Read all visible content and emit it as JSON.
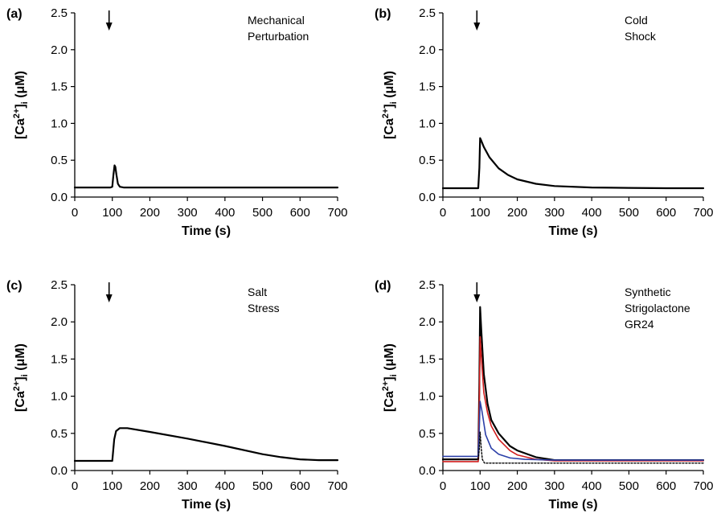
{
  "chart_data": [
    {
      "panel": "(a)",
      "type": "line",
      "xlabel": "Time (s)",
      "ylabel": "[Ca2+]i (μM)",
      "xlim": [
        0,
        700
      ],
      "ylim": [
        0,
        2.5
      ],
      "xticks": [
        "0",
        "100",
        "200",
        "300",
        "400",
        "500",
        "600",
        "700"
      ],
      "yticks": [
        "0.0",
        "0.5",
        "1.0",
        "1.5",
        "2.0",
        "2.5"
      ],
      "annotation": [
        "Mechanical",
        "Perturbation"
      ],
      "arrow_x": 100,
      "series": [
        {
          "color": "#000000",
          "style": "solid",
          "x": [
            0,
            95,
            100,
            103,
            106,
            108,
            111,
            115,
            120,
            130,
            700
          ],
          "y": [
            0.13,
            0.13,
            0.14,
            0.3,
            0.43,
            0.41,
            0.3,
            0.18,
            0.14,
            0.13,
            0.13
          ]
        }
      ]
    },
    {
      "panel": "(b)",
      "type": "line",
      "xlabel": "Time (s)",
      "ylabel": "[Ca2+]i (μM)",
      "xlim": [
        0,
        700
      ],
      "ylim": [
        0,
        2.5
      ],
      "xticks": [
        "0",
        "100",
        "200",
        "300",
        "400",
        "500",
        "600",
        "700"
      ],
      "yticks": [
        "0.0",
        "0.5",
        "1.0",
        "1.5",
        "2.0",
        "2.5"
      ],
      "annotation": [
        "Cold",
        "Shock"
      ],
      "arrow_x": 100,
      "series": [
        {
          "color": "#000000",
          "style": "solid",
          "x": [
            0,
            95,
            98,
            100,
            102,
            110,
            125,
            150,
            175,
            200,
            250,
            300,
            400,
            500,
            600,
            700
          ],
          "y": [
            0.12,
            0.12,
            0.4,
            0.8,
            0.78,
            0.68,
            0.54,
            0.39,
            0.3,
            0.24,
            0.18,
            0.15,
            0.13,
            0.125,
            0.12,
            0.12
          ]
        }
      ]
    },
    {
      "panel": "(c)",
      "type": "line",
      "xlabel": "Time (s)",
      "ylabel": "[Ca2+]i (μM)",
      "xlim": [
        0,
        700
      ],
      "ylim": [
        0,
        2.5
      ],
      "xticks": [
        "0",
        "100",
        "200",
        "300",
        "400",
        "500",
        "600",
        "700"
      ],
      "yticks": [
        "0.0",
        "0.5",
        "1.0",
        "1.5",
        "2.0",
        "2.5"
      ],
      "annotation": [
        "Salt",
        "Stress"
      ],
      "arrow_x": 100,
      "series": [
        {
          "color": "#000000",
          "style": "solid",
          "x": [
            0,
            100,
            105,
            110,
            120,
            140,
            200,
            300,
            400,
            500,
            550,
            600,
            650,
            700
          ],
          "y": [
            0.13,
            0.13,
            0.42,
            0.53,
            0.57,
            0.57,
            0.52,
            0.43,
            0.33,
            0.22,
            0.18,
            0.15,
            0.14,
            0.14
          ]
        }
      ]
    },
    {
      "panel": "(d)",
      "type": "line",
      "xlabel": "Time (s)",
      "ylabel": "[Ca2+]i (μM)",
      "xlim": [
        0,
        700
      ],
      "ylim": [
        0,
        2.5
      ],
      "xticks": [
        "0",
        "100",
        "200",
        "300",
        "400",
        "500",
        "600",
        "700"
      ],
      "yticks": [
        "0.0",
        "0.5",
        "1.0",
        "1.5",
        "2.0",
        "2.5"
      ],
      "annotation": [
        "Synthetic",
        "Strigolactone",
        "GR24"
      ],
      "arrow_x": 100,
      "series": [
        {
          "color": "#000000",
          "style": "solid",
          "x": [
            0,
            95,
            98,
            100,
            103,
            110,
            120,
            130,
            150,
            180,
            200,
            250,
            300,
            700
          ],
          "y": [
            0.15,
            0.15,
            1.2,
            2.2,
            1.9,
            1.3,
            0.9,
            0.68,
            0.5,
            0.33,
            0.27,
            0.18,
            0.14,
            0.14
          ]
        },
        {
          "color": "#d21f1f",
          "style": "solid",
          "x": [
            0,
            95,
            98,
            100,
            103,
            110,
            120,
            130,
            150,
            180,
            200,
            250,
            300,
            700
          ],
          "y": [
            0.12,
            0.12,
            1.0,
            1.8,
            1.55,
            1.05,
            0.78,
            0.6,
            0.42,
            0.27,
            0.21,
            0.15,
            0.13,
            0.13
          ]
        },
        {
          "color": "#2b3fa8",
          "style": "solid",
          "x": [
            0,
            95,
            98,
            100,
            105,
            115,
            130,
            150,
            180,
            220,
            300,
            700
          ],
          "y": [
            0.19,
            0.19,
            0.6,
            0.93,
            0.8,
            0.48,
            0.3,
            0.22,
            0.17,
            0.15,
            0.14,
            0.14
          ]
        },
        {
          "color": "#000000",
          "style": "dotted",
          "x": [
            0,
            95,
            98,
            100,
            103,
            106,
            112,
            130,
            700
          ],
          "y": [
            0.15,
            0.15,
            0.3,
            0.52,
            0.3,
            0.15,
            0.1,
            0.1,
            0.1
          ]
        }
      ]
    }
  ]
}
